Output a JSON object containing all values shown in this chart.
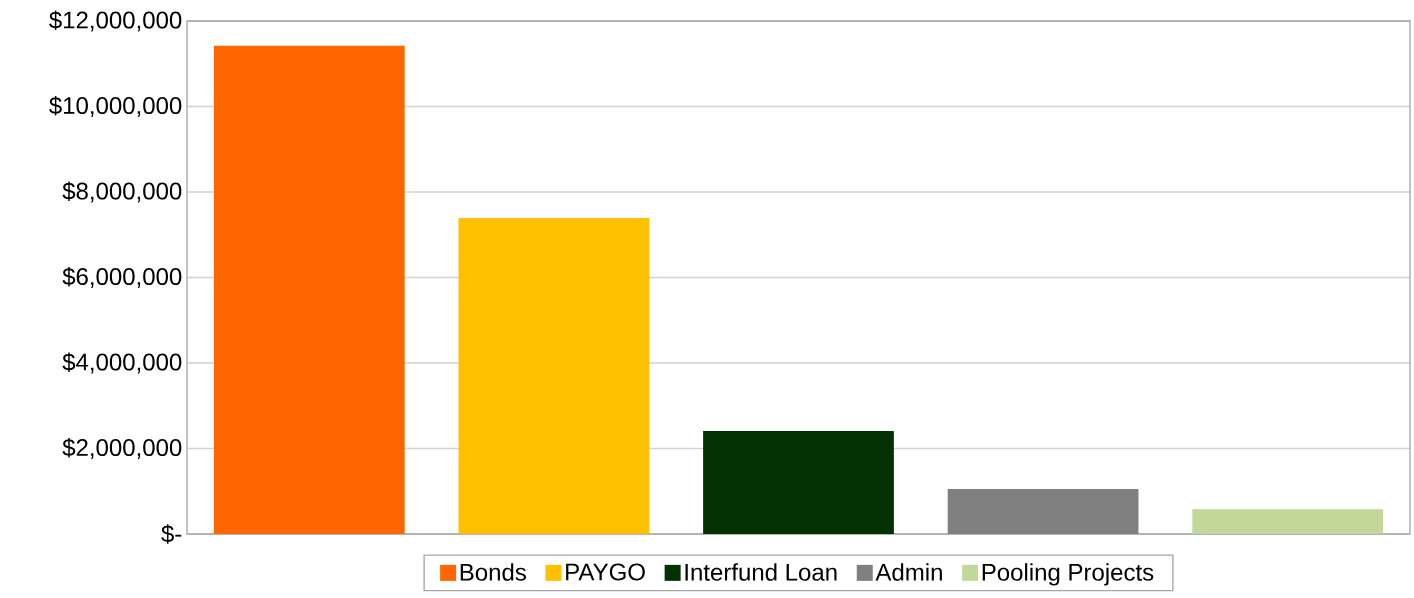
{
  "chart_data": {
    "type": "bar",
    "categories": [
      null,
      null,
      null,
      null,
      null
    ],
    "series": [
      {
        "name": "Bonds",
        "color": "#ff6600",
        "values": [
          11420000,
          null,
          null,
          null,
          null
        ]
      },
      {
        "name": "PAYGO",
        "color": "#ffc000",
        "values": [
          null,
          7390000,
          null,
          null,
          null
        ]
      },
      {
        "name": "Interfund Loan",
        "color": "#033104",
        "values": [
          null,
          null,
          2410000,
          null,
          null
        ]
      },
      {
        "name": "Admin",
        "color": "#808080",
        "values": [
          null,
          null,
          null,
          1050000,
          null
        ]
      },
      {
        "name": "Pooling Projects",
        "color": "#c4d79b",
        "values": [
          null,
          null,
          null,
          null,
          580000
        ]
      }
    ],
    "ylim": [
      0,
      12000000
    ],
    "yticks": [
      {
        "value": 0,
        "label": "$-"
      },
      {
        "value": 2000000,
        "label": "$2,000,000"
      },
      {
        "value": 4000000,
        "label": "$4,000,000"
      },
      {
        "value": 6000000,
        "label": "$6,000,000"
      },
      {
        "value": 8000000,
        "label": "$8,000,000"
      },
      {
        "value": 10000000,
        "label": "$10,000,000"
      },
      {
        "value": 12000000,
        "label": "$12,000,000"
      }
    ],
    "grid": "y",
    "legend": "bottom"
  }
}
